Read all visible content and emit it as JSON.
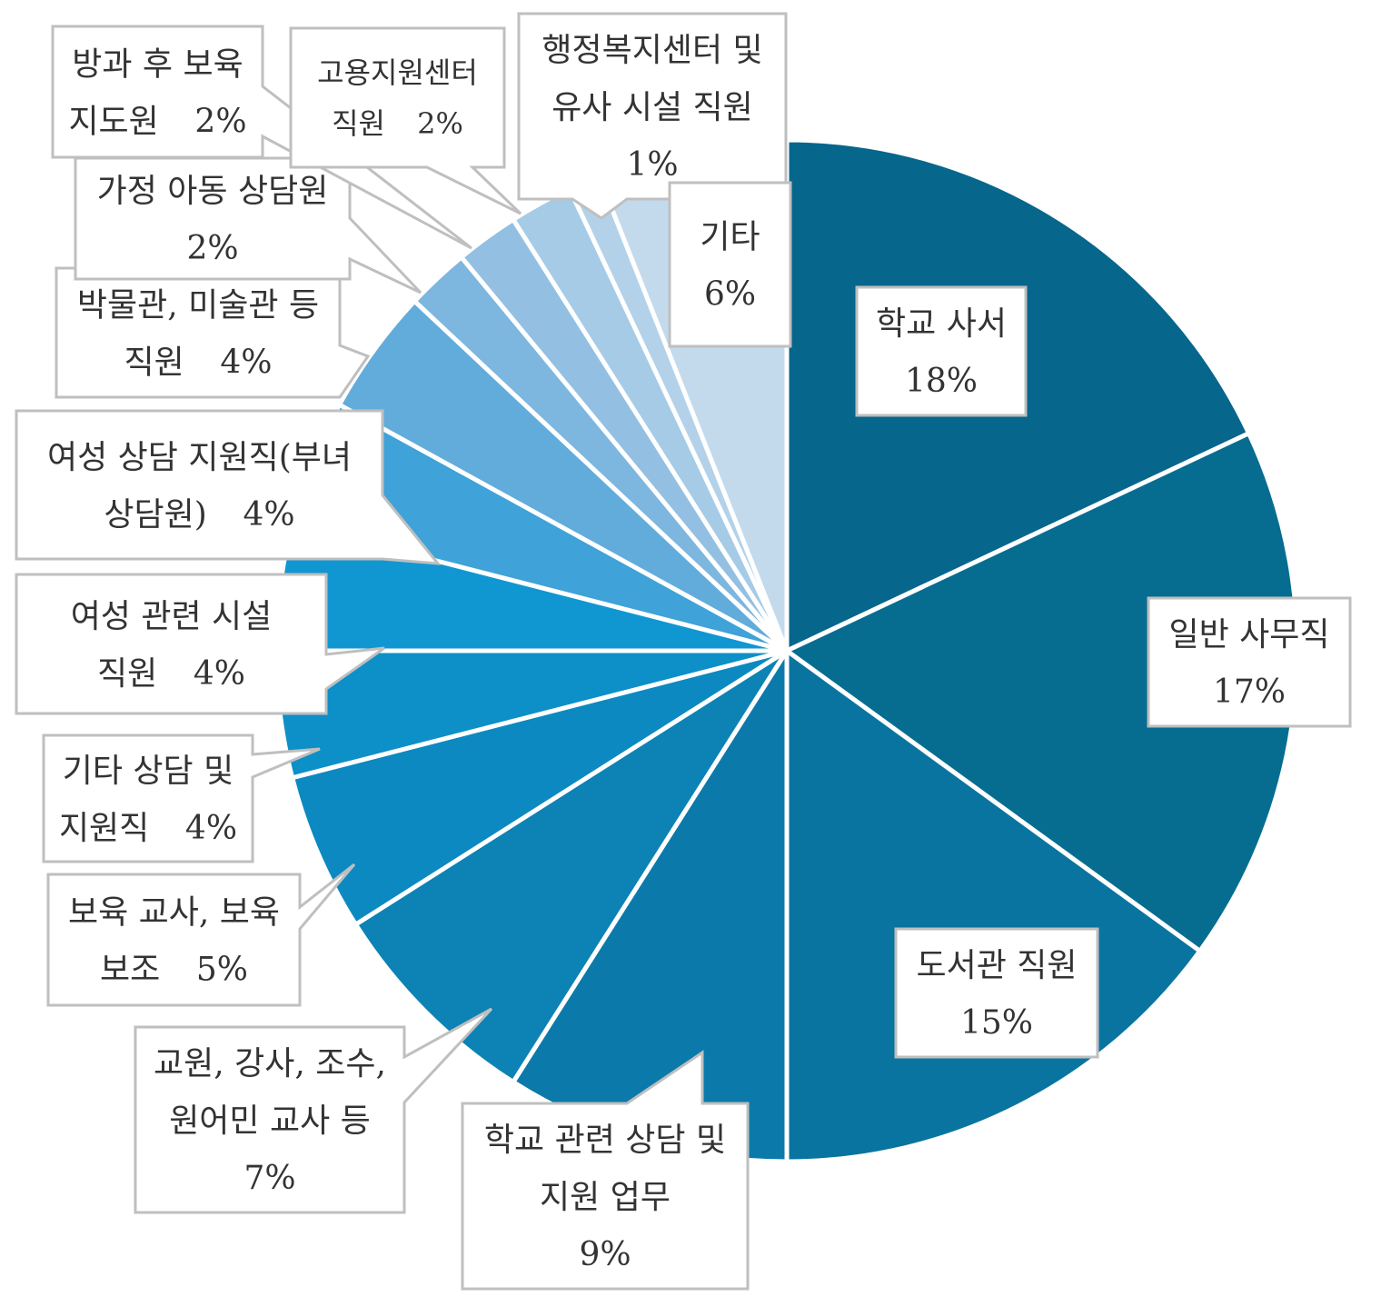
{
  "chart_data": {
    "type": "pie",
    "title": "",
    "slices": [
      {
        "name_lines": [
          "학교 사서"
        ],
        "value": 18,
        "label": "18%",
        "color": "#06668c"
      },
      {
        "name_lines": [
          "일반 사무직"
        ],
        "value": 17,
        "label": "17%",
        "color": "#066d91"
      },
      {
        "name_lines": [
          "도서관 직원"
        ],
        "value": 15,
        "label": "15%",
        "color": "#0a74a0"
      },
      {
        "name_lines": [
          "학교 관련 상담 및",
          "지원 업무"
        ],
        "value": 9,
        "label": "9%",
        "color": "#0b7aaa"
      },
      {
        "name_lines": [
          "교원, 강사, 조수,",
          "원어민 교사 등"
        ],
        "value": 7,
        "label": "7%",
        "color": "#0c82b5"
      },
      {
        "name_lines": [
          "보육 교사, 보육",
          "보조"
        ],
        "value": 5,
        "label": "5%",
        "color": "#0c89c0"
      },
      {
        "name_lines": [
          "기타 상담 및",
          "지원직"
        ],
        "value": 4,
        "label": "4%",
        "color": "#0d8fc8"
      },
      {
        "name_lines": [
          "여성 관련 시설",
          "직원"
        ],
        "value": 4,
        "label": "4%",
        "color": "#1097d2"
      },
      {
        "name_lines": [
          "여성 상담 지원직(부녀",
          "상담원)"
        ],
        "value": 4,
        "label": "4%",
        "color": "#3fa2d8"
      },
      {
        "name_lines": [
          "박물관, 미술관 등",
          "직원"
        ],
        "value": 4,
        "label": "4%",
        "color": "#62acdb"
      },
      {
        "name_lines": [
          "가정 아동 상담원"
        ],
        "value": 2,
        "label": "2%",
        "color": "#7db6de"
      },
      {
        "name_lines": [
          "방과 후 보육",
          "지도원"
        ],
        "value": 2,
        "label": "2%",
        "color": "#93c0e2"
      },
      {
        "name_lines": [
          "고용지원센터",
          "직원"
        ],
        "value": 2,
        "label": "2%",
        "color": "#a6cbe7"
      },
      {
        "name_lines": [
          "행정복지센터 및",
          "유사 시설 직원"
        ],
        "value": 1,
        "label": "1%",
        "color": "#b3d2ea"
      },
      {
        "name_lines": [
          "기타"
        ],
        "value": 6,
        "label": "6%",
        "color": "#c3daed"
      }
    ]
  }
}
